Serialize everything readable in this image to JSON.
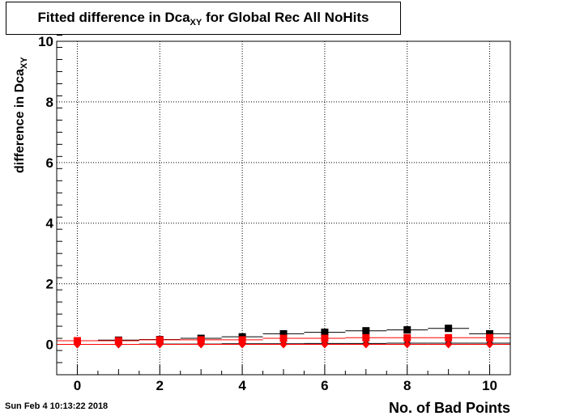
{
  "title": {
    "prefix": "Fitted difference in Dca",
    "sub": "XY",
    "suffix": " for Global Rec All NoHits"
  },
  "timestamp": "Sun Feb  4 10:13:22 2018",
  "chart_data": {
    "type": "scatter",
    "xlabel": "No. of Bad Points",
    "ylabel": "difference in Dca",
    "ylabel_sub": "XY",
    "xlim": [
      -0.5,
      10.5
    ],
    "ylim": [
      -1,
      10
    ],
    "xticks": [
      0,
      2,
      4,
      6,
      8,
      10
    ],
    "yticks": [
      0,
      2,
      4,
      6,
      8,
      10
    ],
    "grid": true,
    "series": [
      {
        "color": "#000000",
        "marker": "square",
        "x": [
          0,
          1,
          2,
          3,
          4,
          5,
          6,
          7,
          8,
          9,
          10
        ],
        "y": [
          0.12,
          0.14,
          0.16,
          0.2,
          0.25,
          0.35,
          0.4,
          0.45,
          0.48,
          0.53,
          0.35
        ],
        "xerr": 0.5
      },
      {
        "color": "#ff0000",
        "marker": "square",
        "x": [
          0,
          1,
          2,
          3,
          4,
          5,
          6,
          7,
          8,
          9,
          10
        ],
        "y": [
          0.12,
          0.12,
          0.15,
          0.15,
          0.15,
          0.2,
          0.2,
          0.22,
          0.22,
          0.22,
          0.22
        ],
        "xerr": 0.5
      },
      {
        "color": "#000000",
        "marker": "diamond",
        "x": [
          0,
          1,
          2,
          3,
          4,
          5,
          6,
          7,
          8,
          9,
          10
        ],
        "y": [
          0.0,
          0.0,
          0.01,
          0.01,
          0.02,
          0.02,
          0.03,
          0.03,
          0.04,
          0.04,
          0.04
        ],
        "xerr": 0.5
      },
      {
        "color": "#ff0000",
        "marker": "diamond",
        "x": [
          0,
          1,
          2,
          3,
          4,
          5,
          6,
          7,
          8,
          9,
          10
        ],
        "y": [
          0.0,
          0.0,
          0.0,
          0.0,
          0.0,
          0.0,
          0.0,
          0.0,
          0.0,
          0.0,
          0.0
        ],
        "xerr": 0.5
      }
    ]
  }
}
